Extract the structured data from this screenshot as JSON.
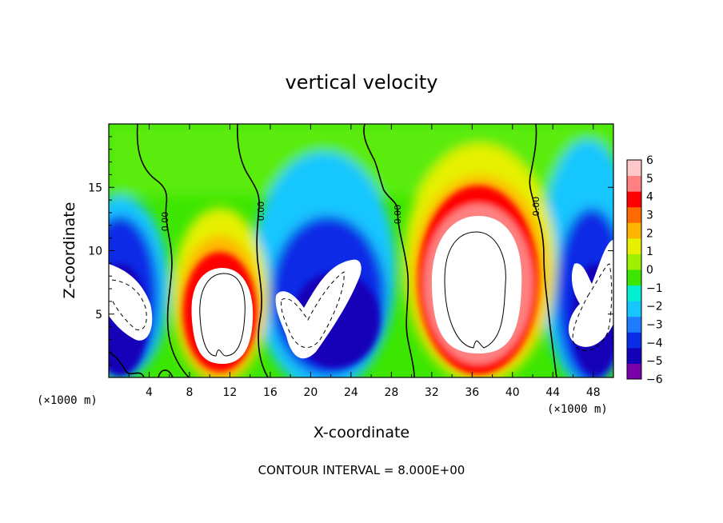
{
  "chart_data": {
    "type": "heatmap",
    "title": "vertical velocity",
    "xlabel": "X-coordinate",
    "ylabel": "Z-coordinate",
    "x_unit_label": "(×1000 m)",
    "x_unit_label_right": "(×1000 m)",
    "xlim": [
      0,
      50
    ],
    "ylim": [
      0,
      20
    ],
    "x_ticks": [
      4,
      8,
      12,
      16,
      20,
      24,
      28,
      32,
      36,
      40,
      44,
      48
    ],
    "y_ticks": [
      5,
      10,
      15
    ],
    "contour_interval_text": "CONTOUR INTERVAL = 8.000E+00",
    "zero_contour_label": "0.00",
    "colorbar": {
      "levels": [
        -6,
        -5,
        -4,
        -3,
        -2,
        -1,
        0,
        1,
        2,
        3,
        4,
        5,
        6
      ],
      "labels": [
        "6",
        "5",
        "4",
        "3",
        "2",
        "1",
        "0",
        "−1",
        "−2",
        "−3",
        "−4",
        "−5",
        "−6"
      ],
      "colors": [
        "#7a00a8",
        "#1400b8",
        "#0a2ce6",
        "#1e7cff",
        "#18c6ff",
        "#00efd0",
        "#3ce600",
        "#9cf000",
        "#e6f000",
        "#ffb400",
        "#ff6a00",
        "#ff0000",
        "#ff8080",
        "#ffc8c8"
      ]
    },
    "updrafts": [
      {
        "x": 11,
        "z": 5.5
      },
      {
        "x": 36,
        "z": 7.5
      }
    ],
    "downdrafts": [
      {
        "x": 1.5,
        "z": 5.5
      },
      {
        "x": 20,
        "z": 6
      },
      {
        "x": 47,
        "z": 6
      }
    ],
    "zero_contour_x": [
      5.5,
      14.5,
      29,
      43.5
    ]
  }
}
